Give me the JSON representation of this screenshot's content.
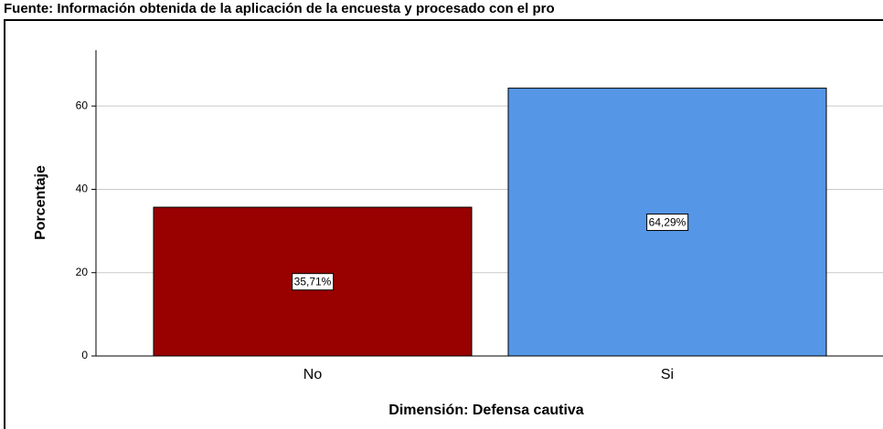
{
  "header": {
    "text": "Fuente: Información obtenida de la aplicación de la encuesta y procesado con el pro"
  },
  "chart_data": {
    "type": "bar",
    "categories": [
      "No",
      "Si"
    ],
    "values": [
      35.71,
      64.29
    ],
    "value_labels": [
      "35,71%",
      "64,29%"
    ],
    "colors": [
      "#990000",
      "#5596e6"
    ],
    "xlabel": "Dimensión: Defensa cautiva",
    "ylabel": "Porcentaje",
    "ylim": [
      0,
      73.4
    ],
    "yticks": [
      0,
      20,
      40,
      60
    ],
    "grid": true
  }
}
